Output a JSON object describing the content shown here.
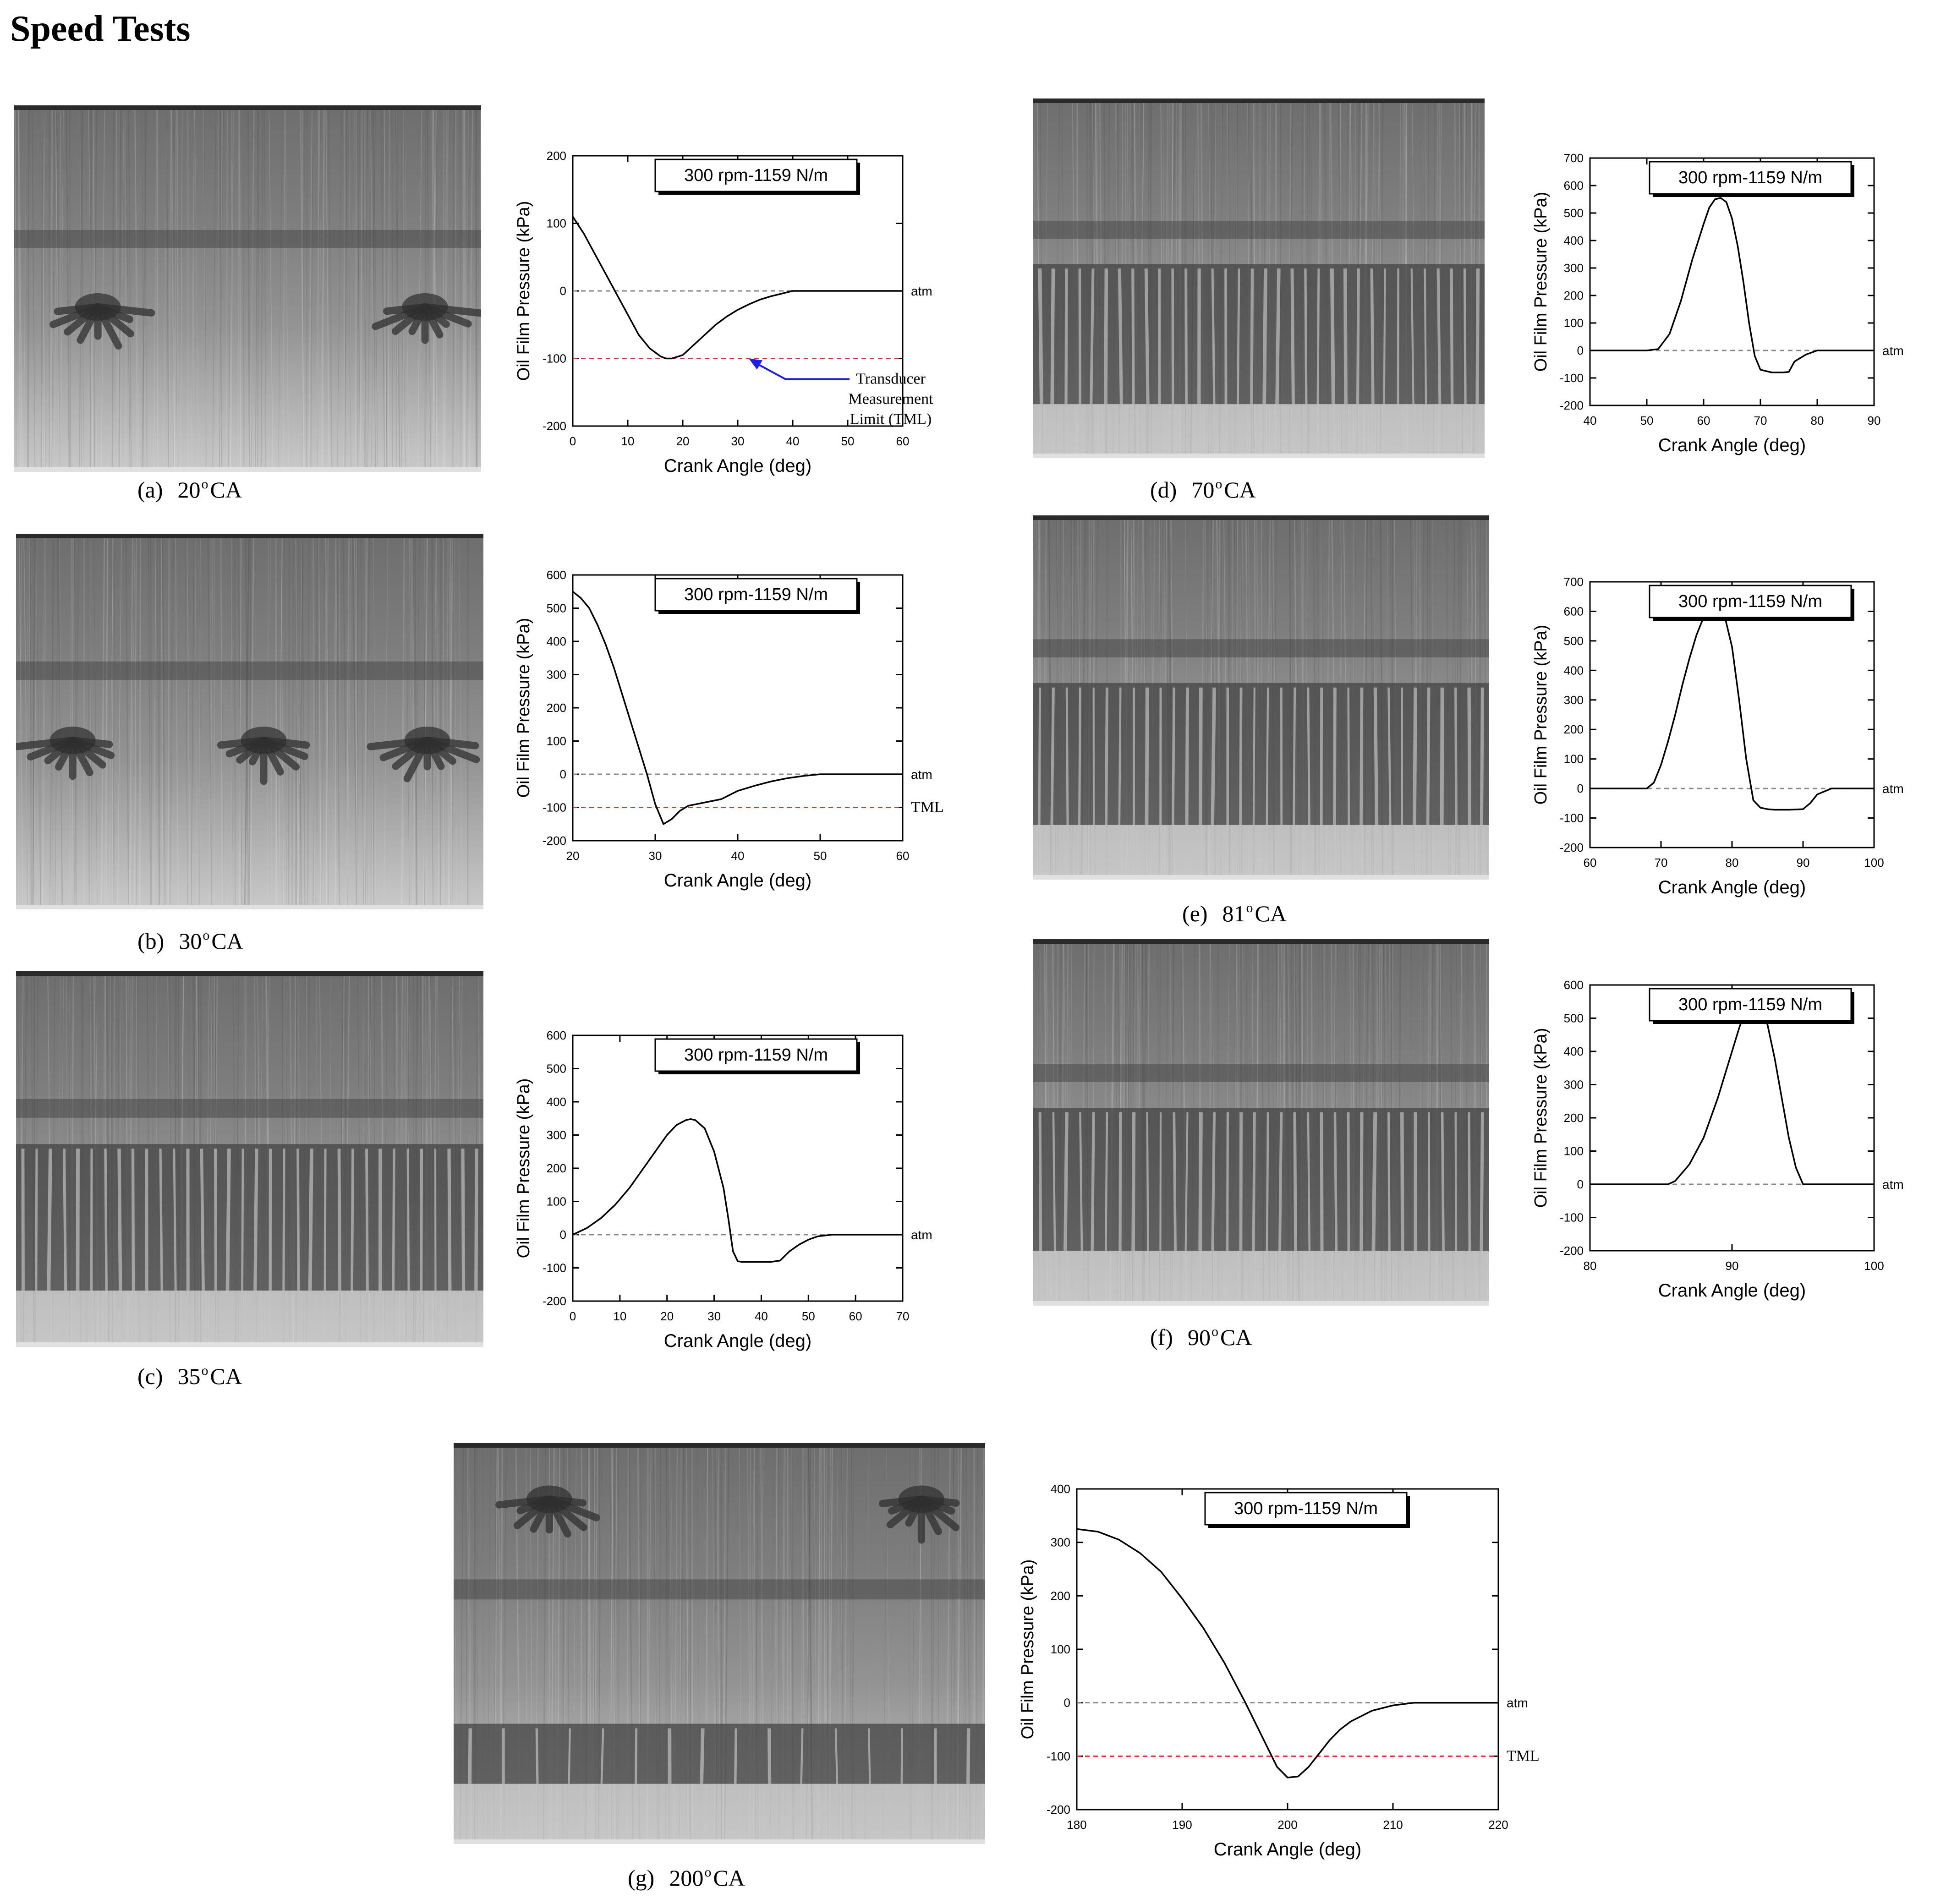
{
  "page": {
    "heading": "Speed Tests"
  },
  "chart_data": [
    {
      "id": "a",
      "type": "line",
      "badge": "300 rpm-1159 N/m",
      "xlabel": "Crank Angle (deg)",
      "ylabel": "Oil Film Pressure (kPa)",
      "xlim": [
        0,
        60
      ],
      "ylim": [
        -200,
        200
      ],
      "xticks": [
        0,
        10,
        20,
        30,
        40,
        50,
        60
      ],
      "yticks": [
        -200,
        -100,
        0,
        100,
        200
      ],
      "ref_lines": [
        {
          "y": 0,
          "color": "#888888",
          "label": "atm"
        },
        {
          "y": -100,
          "color": "#e03030",
          "label": ""
        }
      ],
      "annotation": {
        "lines": [
          "Transducer",
          "Measurement",
          "Limit (TML)"
        ],
        "arrow_to": [
          32,
          -100
        ],
        "arrow_color": "#1a1aff"
      },
      "series": [
        {
          "x": [
            0,
            2,
            4,
            6,
            8,
            10,
            12,
            14,
            16,
            17,
            18,
            20,
            22,
            24,
            26,
            28,
            30,
            32,
            34,
            36,
            38,
            40,
            45,
            50,
            55,
            60
          ],
          "y": [
            110,
            85,
            55,
            25,
            -5,
            -35,
            -65,
            -85,
            -97,
            -100,
            -100,
            -95,
            -80,
            -65,
            -50,
            -38,
            -28,
            -20,
            -13,
            -8,
            -4,
            0,
            0,
            0,
            0,
            0
          ]
        }
      ],
      "caption": {
        "letter": "(a)",
        "angle": "20",
        "deg": "o",
        "unit": "CA"
      }
    },
    {
      "id": "b",
      "type": "line",
      "badge": "300 rpm-1159 N/m",
      "xlabel": "Crank Angle (deg)",
      "ylabel": "Oil Film Pressure (kPa)",
      "xlim": [
        20,
        60
      ],
      "ylim": [
        -200,
        600
      ],
      "xticks": [
        20,
        30,
        40,
        50,
        60
      ],
      "yticks": [
        -200,
        -100,
        0,
        100,
        200,
        300,
        400,
        500,
        600
      ],
      "ref_lines": [
        {
          "y": 0,
          "color": "#888888",
          "label": "atm"
        },
        {
          "y": -100,
          "color": "#e03030",
          "label": "TML"
        }
      ],
      "series": [
        {
          "x": [
            20,
            21,
            22,
            23,
            24,
            25,
            26,
            27,
            28,
            29,
            30,
            31,
            32,
            33,
            34,
            36,
            38,
            40,
            42,
            44,
            46,
            48,
            50,
            55,
            60
          ],
          "y": [
            550,
            530,
            500,
            450,
            390,
            320,
            240,
            160,
            80,
            0,
            -90,
            -150,
            -135,
            -110,
            -95,
            -85,
            -75,
            -50,
            -35,
            -22,
            -12,
            -5,
            0,
            0,
            0
          ]
        }
      ],
      "caption": {
        "letter": "(b)",
        "angle": "30",
        "deg": "o",
        "unit": "CA"
      }
    },
    {
      "id": "c",
      "type": "line",
      "badge": "300 rpm-1159 N/m",
      "xlabel": "Crank Angle (deg)",
      "ylabel": "Oil Film Pressure (kPa)",
      "xlim": [
        0,
        70
      ],
      "ylim": [
        -200,
        600
      ],
      "xticks": [
        0,
        10,
        20,
        30,
        40,
        50,
        60,
        70
      ],
      "yticks": [
        -200,
        -100,
        0,
        100,
        200,
        300,
        400,
        500,
        600
      ],
      "ref_lines": [
        {
          "y": 0,
          "color": "#888888",
          "label": "atm"
        }
      ],
      "series": [
        {
          "x": [
            0,
            3,
            6,
            9,
            12,
            15,
            18,
            20,
            22,
            24,
            25,
            26,
            28,
            30,
            32,
            33,
            34,
            35,
            36,
            38,
            40,
            42,
            44,
            46,
            48,
            50,
            52,
            55,
            60,
            65,
            70
          ],
          "y": [
            0,
            20,
            50,
            90,
            140,
            200,
            260,
            300,
            330,
            345,
            348,
            345,
            320,
            250,
            140,
            50,
            -50,
            -80,
            -82,
            -82,
            -82,
            -82,
            -78,
            -50,
            -30,
            -15,
            -5,
            0,
            0,
            0,
            0
          ]
        }
      ],
      "caption": {
        "letter": "(c)",
        "angle": "35",
        "deg": "o",
        "unit": "CA"
      }
    },
    {
      "id": "d",
      "type": "line",
      "badge": "300 rpm-1159 N/m",
      "xlabel": "Crank Angle (deg)",
      "ylabel": "Oil Film Pressure (kPa)",
      "xlim": [
        40,
        90
      ],
      "ylim": [
        -200,
        700
      ],
      "xticks": [
        40,
        50,
        60,
        70,
        80,
        90
      ],
      "yticks": [
        -200,
        -100,
        0,
        100,
        200,
        300,
        400,
        500,
        600,
        700
      ],
      "ref_lines": [
        {
          "y": 0,
          "color": "#888888",
          "label": "atm"
        }
      ],
      "series": [
        {
          "x": [
            40,
            45,
            50,
            52,
            54,
            56,
            58,
            60,
            61,
            62,
            63,
            64,
            65,
            66,
            67,
            68,
            69,
            70,
            72,
            74,
            75,
            76,
            78,
            80,
            85,
            90
          ],
          "y": [
            0,
            0,
            0,
            5,
            60,
            180,
            330,
            460,
            520,
            550,
            555,
            540,
            480,
            380,
            250,
            100,
            -20,
            -70,
            -80,
            -80,
            -78,
            -40,
            -15,
            0,
            0,
            0
          ]
        }
      ],
      "caption": {
        "letter": "(d)",
        "angle": "70",
        "deg": "o",
        "unit": "CA"
      }
    },
    {
      "id": "e",
      "type": "line",
      "badge": "300 rpm-1159 N/m",
      "xlabel": "Crank Angle (deg)",
      "ylabel": "Oil Film Pressure (kPa)",
      "xlim": [
        60,
        100
      ],
      "ylim": [
        -200,
        700
      ],
      "xticks": [
        60,
        70,
        80,
        90,
        100
      ],
      "yticks": [
        -200,
        -100,
        0,
        100,
        200,
        300,
        400,
        500,
        600,
        700
      ],
      "ref_lines": [
        {
          "y": 0,
          "color": "#888888",
          "label": "atm"
        }
      ],
      "series": [
        {
          "x": [
            60,
            65,
            68,
            69,
            70,
            71,
            72,
            73,
            74,
            75,
            76,
            77,
            78,
            79,
            80,
            81,
            82,
            83,
            84,
            85,
            86,
            88,
            90,
            91,
            92,
            94,
            96,
            100
          ],
          "y": [
            0,
            0,
            0,
            20,
            80,
            160,
            250,
            350,
            440,
            520,
            580,
            605,
            610,
            580,
            480,
            300,
            100,
            -40,
            -65,
            -70,
            -72,
            -72,
            -70,
            -50,
            -20,
            0,
            0,
            0
          ]
        }
      ],
      "caption": {
        "letter": "(e)",
        "angle": "81",
        "deg": "o",
        "unit": "CA"
      }
    },
    {
      "id": "f",
      "type": "line",
      "badge": "300 rpm-1159 N/m",
      "xlabel": "Crank Angle (deg)",
      "ylabel": "Oil Film Pressure (kPa)",
      "xlim": [
        80,
        100
      ],
      "ylim": [
        -200,
        600
      ],
      "xticks": [
        80,
        90,
        100
      ],
      "yticks": [
        -200,
        -100,
        0,
        100,
        200,
        300,
        400,
        500,
        600
      ],
      "ref_lines": [
        {
          "y": 0,
          "color": "#888888",
          "label": "atm"
        }
      ],
      "series": [
        {
          "x": [
            80,
            84,
            85.5,
            86,
            87,
            88,
            89,
            90,
            90.5,
            91,
            91.5,
            92,
            92.5,
            93,
            93.5,
            94,
            94.5,
            95,
            96,
            98,
            100
          ],
          "y": [
            0,
            0,
            0,
            10,
            60,
            140,
            260,
            400,
            470,
            530,
            555,
            540,
            480,
            380,
            260,
            140,
            50,
            0,
            0,
            0,
            0
          ]
        }
      ],
      "caption": {
        "letter": "(f)",
        "angle": "90",
        "deg": "o",
        "unit": "CA"
      }
    },
    {
      "id": "g",
      "type": "line",
      "badge": "300 rpm-1159 N/m",
      "xlabel": "Crank Angle (deg)",
      "ylabel": "Oil Film Pressure (kPa)",
      "xlim": [
        180,
        220
      ],
      "ylim": [
        -200,
        400
      ],
      "xticks": [
        180,
        190,
        200,
        210,
        220
      ],
      "yticks": [
        -200,
        -100,
        0,
        100,
        200,
        300,
        400
      ],
      "ref_lines": [
        {
          "y": 0,
          "color": "#888888",
          "label": "atm"
        },
        {
          "y": -100,
          "color": "#e03030",
          "label": "TML"
        }
      ],
      "series": [
        {
          "x": [
            180,
            182,
            184,
            186,
            188,
            190,
            192,
            194,
            196,
            197,
            198,
            199,
            200,
            201,
            202,
            203,
            204,
            205,
            206,
            208,
            210,
            212,
            215,
            220
          ],
          "y": [
            325,
            320,
            305,
            280,
            245,
            195,
            140,
            75,
            0,
            -40,
            -80,
            -120,
            -140,
            -138,
            -120,
            -95,
            -70,
            -50,
            -35,
            -15,
            -5,
            0,
            0,
            0
          ]
        }
      ],
      "caption": {
        "letter": "(g)",
        "angle": "200",
        "deg": "o",
        "unit": "CA"
      }
    }
  ],
  "photos": [
    {
      "id": "a",
      "pattern": "fern",
      "ferns": 2
    },
    {
      "id": "b",
      "pattern": "fern",
      "ferns": 3
    },
    {
      "id": "c",
      "pattern": "fingers"
    },
    {
      "id": "d",
      "pattern": "fingers"
    },
    {
      "id": "e",
      "pattern": "fingers"
    },
    {
      "id": "f",
      "pattern": "fingers"
    },
    {
      "id": "g",
      "pattern": "fern-fingers",
      "ferns": 2
    }
  ]
}
